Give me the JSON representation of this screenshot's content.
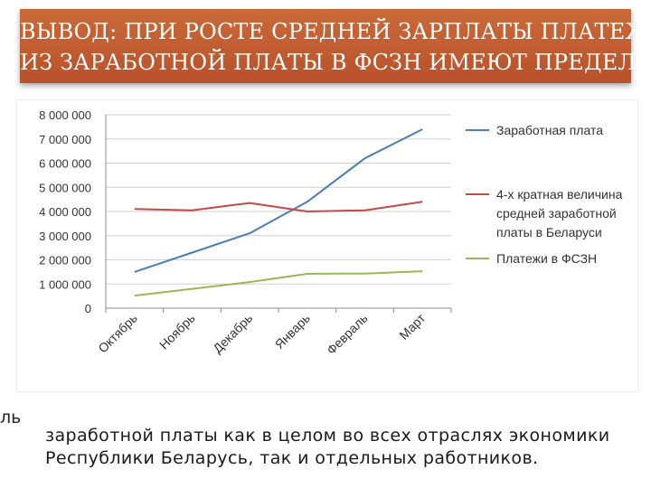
{
  "slide": {
    "title_line1": "ВЫВОД: ПРИ РОСТЕ СРЕДНЕЙ ЗАРПЛАТЫ ПЛАТЕЖИ",
    "title_line2": "ИЗ ЗАРАБОТНОЙ ПЛАТЫ В ФСЗН ИМЕЮТ ПРЕДЕЛ",
    "stray_fragment": "ль",
    "body_line1": "заработной платы как в целом во всех отраслях экономики",
    "body_line2": "Республики Беларусь, так и отдельных работников."
  },
  "chart_data": {
    "type": "line",
    "categories": [
      "Октябрь",
      "Ноябрь",
      "Декабрь",
      "Январь",
      "Февраль",
      "Март"
    ],
    "ylim": [
      0,
      8000000
    ],
    "yticks": [
      0,
      1000000,
      2000000,
      3000000,
      4000000,
      5000000,
      6000000,
      7000000,
      8000000
    ],
    "ytick_labels": [
      "0",
      "1 000 000",
      "2 000 000",
      "3 000 000",
      "4 000 000",
      "5 000 000",
      "6 000 000",
      "7 000 000",
      "8 000 000"
    ],
    "grid": true,
    "legend_position": "right",
    "series": [
      {
        "name": "Заработная плата",
        "color": "#4a7ebb",
        "values": [
          1500000,
          2300000,
          3100000,
          4400000,
          6200000,
          7400000
        ]
      },
      {
        "name": "4-х кратная величина средней заработной платы в Беларуси",
        "color": "#be4b48",
        "values": [
          4100000,
          4050000,
          4350000,
          4000000,
          4050000,
          4400000
        ]
      },
      {
        "name": "Платежи в ФСЗН",
        "color": "#98b954",
        "values": [
          520000,
          800000,
          1080000,
          1420000,
          1430000,
          1530000
        ]
      }
    ]
  }
}
